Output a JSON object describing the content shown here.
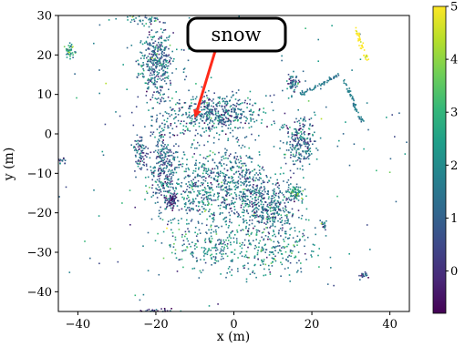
{
  "chart_data": {
    "type": "scatter",
    "title": "",
    "xlabel": "x (m)",
    "ylabel": "y (m)",
    "xlim": [
      -45,
      45
    ],
    "ylim": [
      -45,
      30
    ],
    "xticks": [
      -40,
      -20,
      0,
      20,
      40
    ],
    "yticks": [
      -40,
      -30,
      -20,
      -10,
      0,
      10,
      20,
      30
    ],
    "grid": false,
    "colormap": "viridis",
    "colorbar": {
      "range": [
        -0.8,
        5
      ],
      "ticks": [
        0,
        1,
        2,
        3,
        4,
        5
      ]
    },
    "colors": {
      "viridis": [
        "#440154",
        "#482878",
        "#3e4989",
        "#31688e",
        "#26828e",
        "#1f9e89",
        "#35b779",
        "#6ece58",
        "#b5de2b",
        "#fde725"
      ],
      "arrow": "#ff2a1a"
    },
    "annotation": {
      "text": "snow",
      "points_to": [
        -10,
        4
      ]
    },
    "clusters": [
      {
        "cx": -20,
        "cy": 18,
        "sx": 3.5,
        "sy": 7,
        "n": 380,
        "v": 1.3
      },
      {
        "cx": -5,
        "cy": 5,
        "sx": 9,
        "sy": 4,
        "n": 480,
        "v": 1.2
      },
      {
        "cx": -18,
        "cy": -8,
        "sx": 3,
        "sy": 9,
        "n": 300,
        "v": 1.1
      },
      {
        "cx": -8,
        "cy": -14,
        "sx": 7,
        "sy": 8,
        "n": 420,
        "v": 1.5
      },
      {
        "cx": 2,
        "cy": -12,
        "sx": 5,
        "sy": 7,
        "n": 300,
        "v": 1.4
      },
      {
        "cx": 9,
        "cy": -19,
        "sx": 6,
        "sy": 6,
        "n": 380,
        "v": 1.3
      },
      {
        "cx": 17,
        "cy": -2,
        "sx": 3,
        "sy": 5,
        "n": 220,
        "v": 1.2
      },
      {
        "cx": -5,
        "cy": -28,
        "sx": 10,
        "sy": 5,
        "n": 220,
        "v": 1.9
      },
      {
        "cx": 10,
        "cy": -30,
        "sx": 9,
        "sy": 5,
        "n": 180,
        "v": 1.8
      },
      {
        "cx": -16,
        "cy": -17,
        "sx": 1.5,
        "sy": 1.5,
        "n": 70,
        "v": 0.2
      },
      {
        "cx": 16,
        "cy": -15,
        "sx": 1.5,
        "sy": 1.5,
        "n": 70,
        "v": 2.3
      },
      {
        "cx": -24,
        "cy": -5,
        "sx": 1.2,
        "sy": 4,
        "n": 80,
        "v": 1.0
      },
      {
        "cx": -42,
        "cy": 21,
        "sx": 1.3,
        "sy": 1.3,
        "n": 45,
        "v": 2.3
      },
      {
        "cx": 15,
        "cy": 13,
        "sx": 1.5,
        "sy": 1.8,
        "n": 60,
        "v": 1.2
      },
      {
        "cx": -23,
        "cy": 29,
        "sx": 5,
        "sy": 0.8,
        "n": 40,
        "v": 1.5
      },
      {
        "cx": 23,
        "cy": -23,
        "sx": 0.8,
        "sy": 1.2,
        "n": 20,
        "v": 1.0
      },
      {
        "cx": -44,
        "cy": -7,
        "sx": 0.8,
        "sy": 0.8,
        "n": 15,
        "v": 0.8
      },
      {
        "cx": 33,
        "cy": -36,
        "sx": 1,
        "sy": 0.8,
        "n": 18,
        "v": 1.0
      },
      {
        "cx": -18,
        "cy": -45,
        "sx": 5,
        "sy": 0.5,
        "n": 60,
        "v": 0.4
      },
      {
        "cx": 0,
        "cy": -5,
        "sx": 40,
        "sy": 35,
        "n": 260,
        "v": 1.8
      }
    ],
    "line_segments": [
      {
        "x1": 17,
        "y1": 10,
        "x2": 27,
        "y2": 15,
        "n": 60,
        "v": 1.5
      },
      {
        "x1": 28,
        "y1": 14,
        "x2": 33,
        "y2": 3,
        "n": 55,
        "v": 1.6
      },
      {
        "x1": 31,
        "y1": 27,
        "x2": 34,
        "y2": 19,
        "n": 40,
        "v": 4.9
      }
    ]
  }
}
